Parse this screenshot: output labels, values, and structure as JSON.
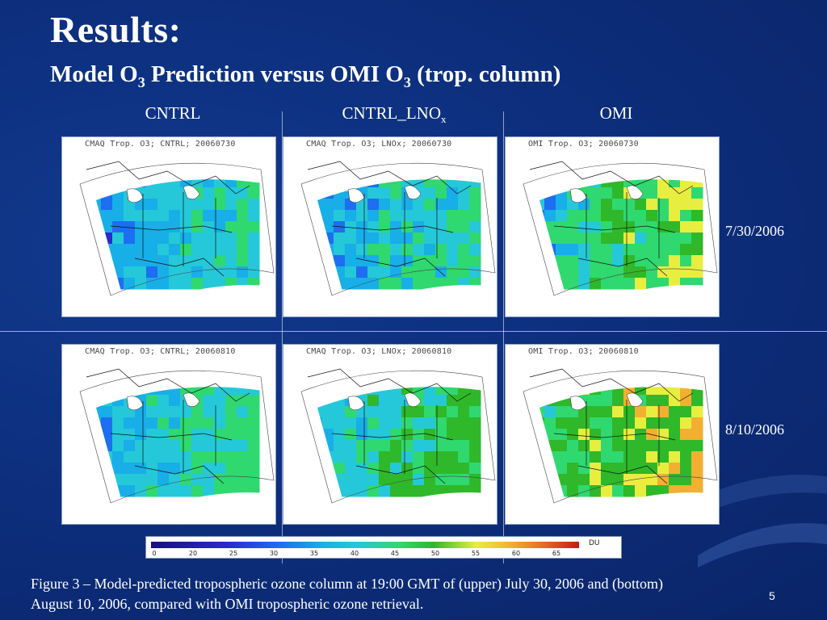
{
  "slide": {
    "title": "Results:",
    "subtitle": {
      "part1": "Model O",
      "sub1": "3",
      "part2": " Prediction versus OMI O",
      "sub2": "3",
      "part3": " (trop. column)"
    },
    "page_number": "5"
  },
  "columns": [
    {
      "label": "CNTRL",
      "sub": ""
    },
    {
      "label": "CNTRL_LNO",
      "sub": "x"
    },
    {
      "label": "OMI",
      "sub": ""
    }
  ],
  "rows": [
    {
      "date": "7/30/2006",
      "panels": [
        {
          "label": "CMAQ Trop. O3; CNTRL; 20060730"
        },
        {
          "label": "CMAQ Trop. O3; LNOx; 20060730"
        },
        {
          "label": "OMI Trop. O3; 20060730"
        }
      ]
    },
    {
      "date": "8/10/2006",
      "panels": [
        {
          "label": "CMAQ Trop. O3; CNTRL; 20060810"
        },
        {
          "label": "CMAQ Trop. O3; LNOx; 20060810"
        },
        {
          "label": "OMI Trop. O3; 20060810"
        }
      ]
    }
  ],
  "colorbar": {
    "ticks": [
      "0",
      "20",
      "25",
      "30",
      "35",
      "40",
      "45",
      "50",
      "55",
      "60",
      "65"
    ],
    "unit": "DU",
    "colors": [
      "#1a1080",
      "#2a2acc",
      "#1d6ef0",
      "#18aee8",
      "#25c8d8",
      "#30d870",
      "#2fb82a",
      "#e8ee40",
      "#f2b030",
      "#e46a20",
      "#c81818"
    ]
  },
  "caption": {
    "line1": "Figure 3 – Model-predicted tropospheric ozone column at 19:00 GMT of (upper) July 30, 2006 and (bottom)",
    "line2": "August 10, 2006, compared with OMI tropospheric ozone retrieval."
  }
}
